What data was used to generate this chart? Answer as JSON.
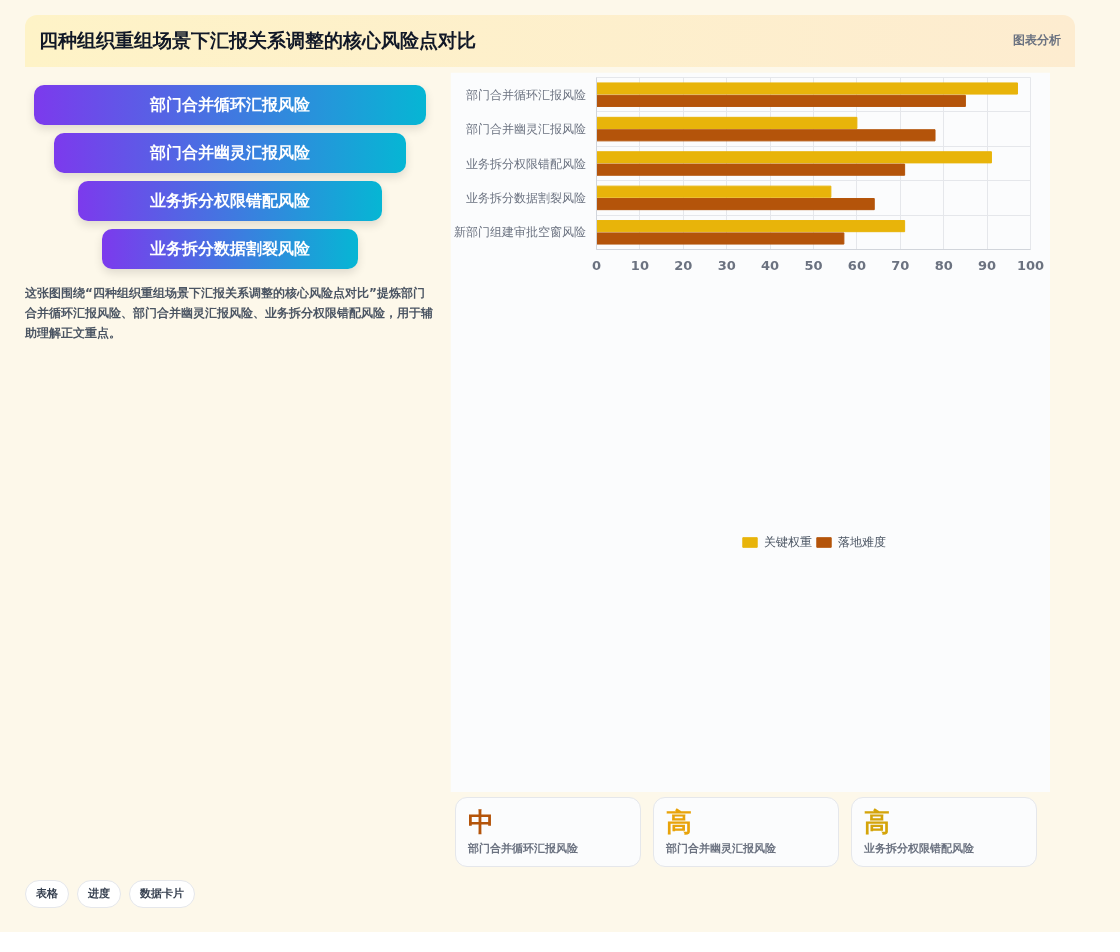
{
  "chart_data": {
    "type": "bar",
    "orientation": "horizontal",
    "title": "四种组织重组场景下汇报关系调整的核心风险点对比",
    "categories": [
      "部门合并循环汇报风险",
      "部门合并幽灵汇报风险",
      "业务拆分权限错配风险",
      "业务拆分数据割裂风险",
      "新部门组建审批空窗风险"
    ],
    "series": [
      {
        "name": "关键权重",
        "color": "#e8b40a",
        "values": [
          97,
          60,
          91,
          54,
          71
        ]
      },
      {
        "name": "落地难度",
        "color": "#b4540a",
        "values": [
          85,
          78,
          71,
          64,
          57
        ]
      }
    ],
    "xlim": [
      0,
      100
    ],
    "xticks": [
      0,
      10,
      20,
      30,
      40,
      50,
      60,
      70,
      80,
      90,
      100
    ],
    "grid": true,
    "legend": "bottom",
    "annotations": [
      "图表分析",
      "部门合并循环汇报风险",
      "部门合并幽灵汇报风险",
      "业务拆分权限错配风险",
      "业务拆分数据割裂风险",
      "这张图围绕“四种组织重组场景下汇报关系调整的核心风险点对比”提炼部门合并循环汇报风险、部门合并幽灵汇报风险、业务拆分权限错配风险，用于辅助理解正文重点。",
      "表格",
      "进度",
      "数据卡片",
      "中",
      "部门合并循环汇报风险",
      "高",
      "部门合并幽灵汇报风险",
      "高",
      "业务拆分权限错配风险"
    ]
  }
}
